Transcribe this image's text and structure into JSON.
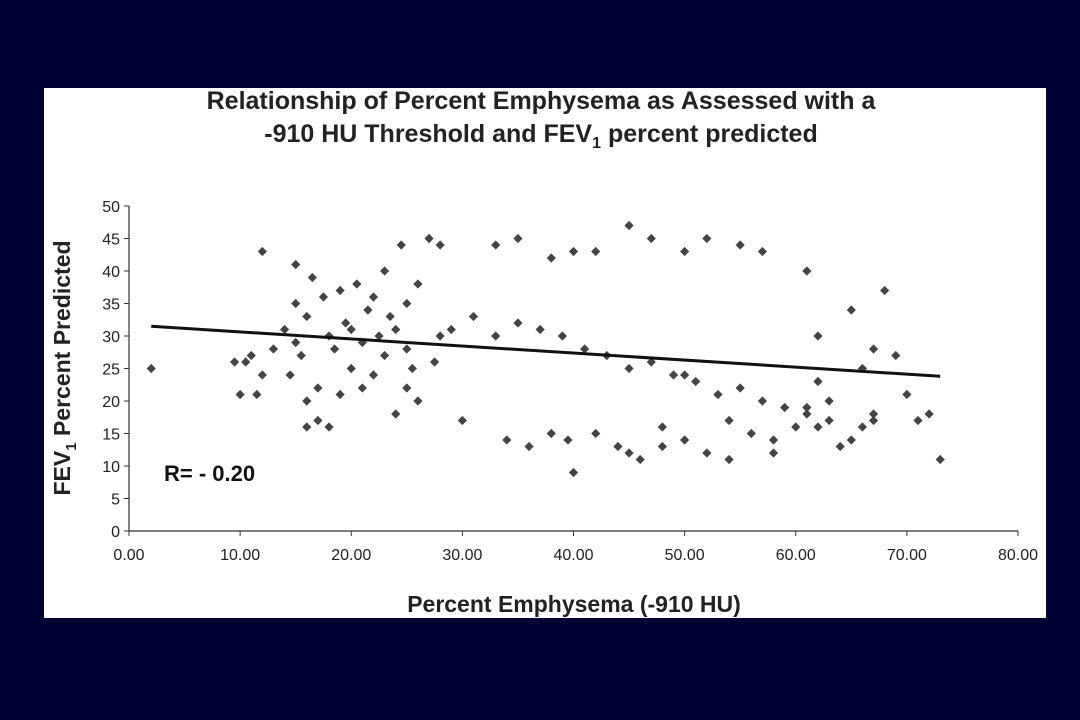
{
  "colors": {
    "background": "#000033",
    "panel": "#ffffff",
    "points": "#444444",
    "trendline": "#111111",
    "text": "#222222"
  },
  "chart_data": {
    "type": "scatter",
    "title": {
      "line1": "Relationship of Percent Emphysema as Assessed with a",
      "line2_prefix": "-910 HU Threshold and FEV",
      "line2_sub": "1",
      "line2_suffix": " percent predicted"
    },
    "xlabel": "Percent Emphysema (-910 HU)",
    "ylabel": {
      "prefix": "FEV",
      "sub": "1",
      "suffix": " Percent Predicted"
    },
    "xlim": [
      0,
      80
    ],
    "ylim": [
      0,
      50
    ],
    "x_ticks": [
      "0.00",
      "10.00",
      "20.00",
      "30.00",
      "40.00",
      "50.00",
      "60.00",
      "70.00",
      "80.00"
    ],
    "y_ticks": [
      "0",
      "5",
      "10",
      "15",
      "20",
      "25",
      "30",
      "35",
      "40",
      "45",
      "50"
    ],
    "grid": false,
    "legend": "none",
    "annotation": "R= - 0.20",
    "trendline": {
      "x": [
        2,
        73
      ],
      "y": [
        31.5,
        23.8
      ]
    },
    "points": {
      "x": [
        2,
        9.5,
        10,
        10.5,
        11,
        11.5,
        12,
        12,
        13,
        14,
        14.5,
        15,
        15,
        15,
        15.5,
        16,
        16,
        16,
        16.5,
        17,
        17,
        17.5,
        18,
        18,
        18.5,
        19,
        19,
        19.5,
        20,
        20,
        20.5,
        21,
        21,
        21.5,
        22,
        22,
        22.5,
        23,
        23,
        23.5,
        24,
        24,
        24.5,
        25,
        25,
        25,
        25.5,
        26,
        26,
        27,
        27.5,
        28,
        28,
        72,
        73,
        71,
        70,
        69,
        68,
        67,
        67,
        66,
        65,
        65,
        64,
        63,
        62,
        62,
        61,
        61,
        33,
        35,
        38,
        40,
        42,
        45,
        47,
        50,
        52,
        55,
        57,
        40,
        46,
        52,
        58,
        39.5,
        45,
        50,
        54,
        58,
        36,
        42,
        48,
        54,
        60,
        30,
        34,
        38,
        44,
        48,
        56,
        62,
        63,
        66,
        67,
        50,
        29,
        31,
        33,
        35,
        37,
        39,
        41,
        43,
        45,
        47,
        49,
        51,
        53,
        55,
        57,
        59,
        61
      ],
      "y": [
        25,
        26,
        21,
        26,
        27,
        21,
        43,
        24,
        28,
        31,
        24,
        35,
        29,
        41,
        27,
        20,
        16,
        33,
        39,
        22,
        17,
        36,
        30,
        16,
        28,
        37,
        21,
        32,
        25,
        31,
        38,
        29,
        22,
        34,
        36,
        24,
        30,
        40,
        27,
        33,
        18,
        31,
        44,
        35,
        28,
        22,
        25,
        38,
        20,
        45,
        26,
        44,
        30,
        18,
        11,
        17,
        21,
        27,
        37,
        28,
        18,
        25,
        14,
        34,
        13,
        20,
        23,
        30,
        40,
        19,
        44,
        45,
        42,
        43,
        43,
        47,
        45,
        43,
        45,
        44,
        43,
        9,
        11,
        12,
        12,
        14,
        12,
        14,
        11,
        14,
        13,
        15,
        16,
        17,
        16,
        17,
        14,
        15,
        13,
        13,
        15,
        16,
        17,
        16,
        17,
        24,
        31,
        33,
        30,
        32,
        31,
        30,
        28,
        27,
        25,
        26,
        24,
        23,
        21,
        22,
        20,
        19,
        18
      ]
    }
  }
}
